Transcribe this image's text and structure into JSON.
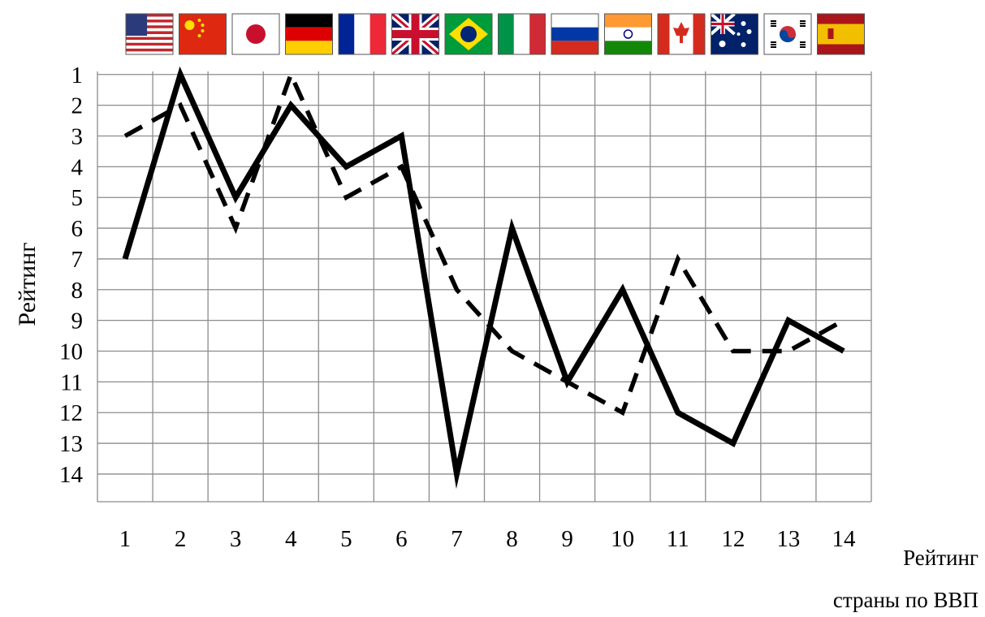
{
  "chart_data": {
    "type": "line",
    "ylabel": "Рейтинг",
    "xlabel_line1": "Рейтинг",
    "xlabel_line2": "страны по ВВП",
    "x": [
      1,
      2,
      3,
      4,
      5,
      6,
      7,
      8,
      9,
      10,
      11,
      12,
      13,
      14
    ],
    "xlim": [
      0.5,
      14.5
    ],
    "ylim": [
      14.9,
      0.9
    ],
    "y_ticks": [
      1,
      2,
      3,
      4,
      5,
      6,
      7,
      8,
      9,
      10,
      11,
      12,
      13,
      14
    ],
    "y_inverted": true,
    "grid": true,
    "series": [
      {
        "style": "solid",
        "values": [
          7,
          1,
          5,
          2,
          4,
          3,
          14,
          6,
          11,
          8,
          12,
          13,
          9,
          10
        ]
      },
      {
        "style": "dashed",
        "values": [
          3,
          2,
          6,
          1,
          5,
          4,
          8,
          10,
          11,
          12,
          7,
          10,
          10,
          9
        ]
      }
    ],
    "flags": [
      "usa-flag",
      "china-flag",
      "japan-flag",
      "germany-flag",
      "france-flag",
      "uk-flag",
      "brazil-flag",
      "italy-flag",
      "russia-flag",
      "india-flag",
      "canada-flag",
      "australia-flag",
      "south-korea-flag",
      "spain-flag"
    ]
  }
}
